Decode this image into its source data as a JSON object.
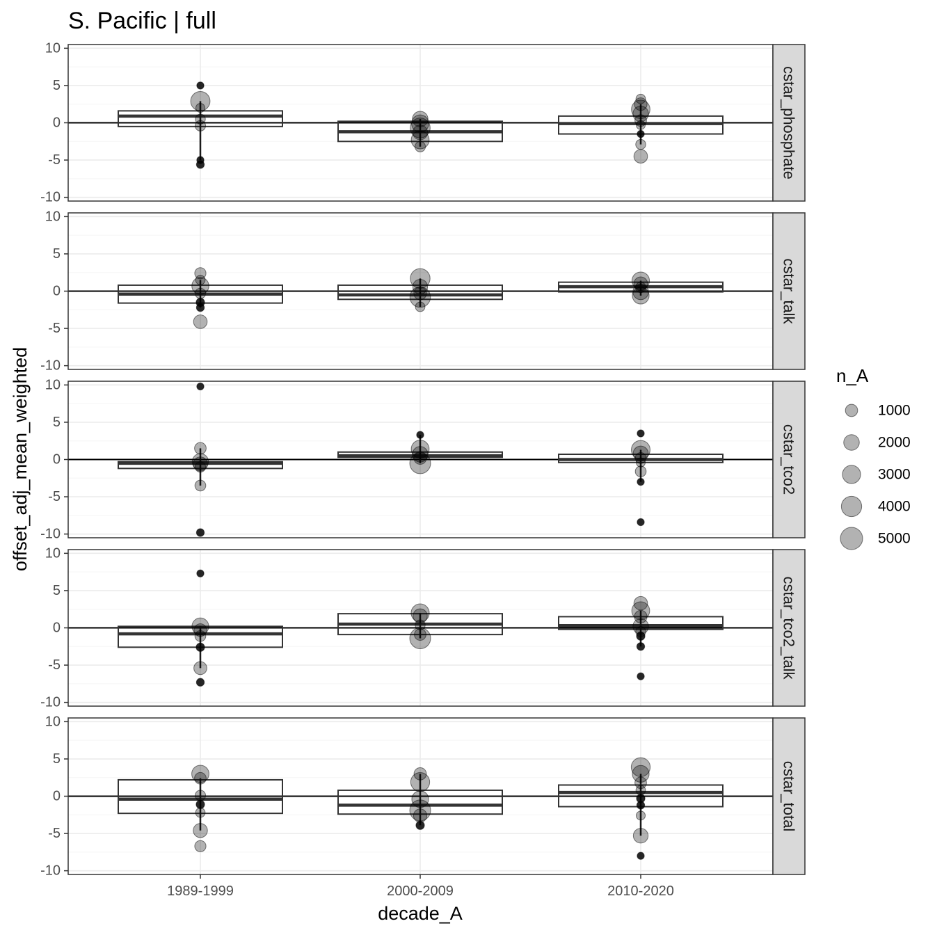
{
  "chart_data": {
    "type": "boxplot",
    "title": "S. Pacific | full",
    "xlabel": "decade_A",
    "ylabel": "offset_adj_mean_weighted",
    "categories": [
      "1989-1999",
      "2000-2009",
      "2010-2020"
    ],
    "ylim": [
      -10.5,
      10.5
    ],
    "yticks": [
      "10",
      "5",
      "0",
      "-5",
      "-10"
    ],
    "ytick_values": [
      10,
      5,
      0,
      -5,
      -10
    ],
    "reference_line_y": 0,
    "grid": true,
    "colors": {
      "panel_border": "#333333",
      "grid_major": "#ebebeb",
      "grid_minor": "#f5f5f5",
      "strip_fill": "#d9d9d9",
      "box_line": "#333333",
      "point_fill": "#000000"
    },
    "legend": {
      "title": "n_A",
      "position": "right",
      "entries": [
        {
          "label": "1000",
          "value": 1000
        },
        {
          "label": "2000",
          "value": 2000
        },
        {
          "label": "3000",
          "value": 3000
        },
        {
          "label": "4000",
          "value": 4000
        },
        {
          "label": "5000",
          "value": 5000
        }
      ]
    },
    "facets": [
      {
        "label": "cstar_phosphate",
        "boxes": [
          {
            "category": "1989-1999",
            "q1": -0.5,
            "median": 0.9,
            "q3": 1.6
          },
          {
            "category": "2000-2009",
            "q1": -2.5,
            "median": -1.2,
            "q3": 0.2
          },
          {
            "category": "2010-2020",
            "q1": -1.5,
            "median": -0.1,
            "q3": 0.9
          }
        ],
        "points": [
          {
            "category": "1989-1999",
            "y": 5.0,
            "n": 300
          },
          {
            "category": "1989-1999",
            "y": 2.9,
            "n": 4200
          },
          {
            "category": "1989-1999",
            "y": 2.0,
            "n": 600
          },
          {
            "category": "1989-1999",
            "y": 0.5,
            "n": 800
          },
          {
            "category": "1989-1999",
            "y": -0.4,
            "n": 900
          },
          {
            "category": "1989-1999",
            "y": -5.0,
            "n": 300
          },
          {
            "category": "1989-1999",
            "y": -5.6,
            "n": 400
          },
          {
            "category": "2000-2009",
            "y": 0.5,
            "n": 2500
          },
          {
            "category": "2000-2009",
            "y": -0.1,
            "n": 3200
          },
          {
            "category": "2000-2009",
            "y": -0.7,
            "n": 4500
          },
          {
            "category": "2000-2009",
            "y": -1.3,
            "n": 2200
          },
          {
            "category": "2000-2009",
            "y": -2.3,
            "n": 3500
          },
          {
            "category": "2000-2009",
            "y": -3.2,
            "n": 900
          },
          {
            "category": "2010-2020",
            "y": 3.2,
            "n": 700
          },
          {
            "category": "2010-2020",
            "y": 2.5,
            "n": 1500
          },
          {
            "category": "2010-2020",
            "y": 1.8,
            "n": 3800
          },
          {
            "category": "2010-2020",
            "y": 1.2,
            "n": 2500
          },
          {
            "category": "2010-2020",
            "y": 0.3,
            "n": 1200
          },
          {
            "category": "2010-2020",
            "y": -0.3,
            "n": 600
          },
          {
            "category": "2010-2020",
            "y": -1.5,
            "n": 300
          },
          {
            "category": "2010-2020",
            "y": -2.9,
            "n": 800
          },
          {
            "category": "2010-2020",
            "y": -4.5,
            "n": 1800
          }
        ]
      },
      {
        "label": "cstar_talk",
        "boxes": [
          {
            "category": "1989-1999",
            "q1": -1.6,
            "median": -0.4,
            "q3": 0.8
          },
          {
            "category": "2000-2009",
            "q1": -1.1,
            "median": -0.5,
            "q3": 0.8
          },
          {
            "category": "2010-2020",
            "q1": -0.1,
            "median": 0.6,
            "q3": 1.2
          }
        ],
        "points": [
          {
            "category": "1989-1999",
            "y": 2.4,
            "n": 1100
          },
          {
            "category": "1989-1999",
            "y": 1.5,
            "n": 700
          },
          {
            "category": "1989-1999",
            "y": 0.7,
            "n": 3100
          },
          {
            "category": "1989-1999",
            "y": -0.3,
            "n": 900
          },
          {
            "category": "1989-1999",
            "y": -1.5,
            "n": 500
          },
          {
            "category": "1989-1999",
            "y": -2.2,
            "n": 400
          },
          {
            "category": "1989-1999",
            "y": -4.1,
            "n": 1800
          },
          {
            "category": "2000-2009",
            "y": 1.7,
            "n": 4400
          },
          {
            "category": "2000-2009",
            "y": 0.6,
            "n": 2200
          },
          {
            "category": "2000-2009",
            "y": -0.3,
            "n": 1500
          },
          {
            "category": "2000-2009",
            "y": -0.8,
            "n": 4800
          },
          {
            "category": "2000-2009",
            "y": -2.1,
            "n": 700
          },
          {
            "category": "2010-2020",
            "y": 1.4,
            "n": 3300
          },
          {
            "category": "2010-2020",
            "y": 1.0,
            "n": 1800
          },
          {
            "category": "2010-2020",
            "y": 0.5,
            "n": 900
          },
          {
            "category": "2010-2020",
            "y": -0.1,
            "n": 2500
          },
          {
            "category": "2010-2020",
            "y": -0.6,
            "n": 3000
          }
        ]
      },
      {
        "label": "cstar_tco2",
        "boxes": [
          {
            "category": "1989-1999",
            "q1": -1.2,
            "median": -0.5,
            "q3": -0.3
          },
          {
            "category": "2000-2009",
            "q1": 0.3,
            "median": 0.5,
            "q3": 1.0
          },
          {
            "category": "2010-2020",
            "q1": -0.4,
            "median": 0.0,
            "q3": 0.7
          }
        ],
        "points": [
          {
            "category": "1989-1999",
            "y": 9.8,
            "n": 300
          },
          {
            "category": "1989-1999",
            "y": 1.5,
            "n": 1200
          },
          {
            "category": "1989-1999",
            "y": -0.3,
            "n": 2800
          },
          {
            "category": "1989-1999",
            "y": -0.6,
            "n": 2000
          },
          {
            "category": "1989-1999",
            "y": -1.0,
            "n": 900
          },
          {
            "category": "1989-1999",
            "y": -3.5,
            "n": 1000
          },
          {
            "category": "1989-1999",
            "y": -9.8,
            "n": 400
          },
          {
            "category": "2000-2009",
            "y": 3.3,
            "n": 300
          },
          {
            "category": "2000-2009",
            "y": 1.4,
            "n": 3500
          },
          {
            "category": "2000-2009",
            "y": 0.7,
            "n": 2500
          },
          {
            "category": "2000-2009",
            "y": 0.2,
            "n": 1500
          },
          {
            "category": "2000-2009",
            "y": -0.5,
            "n": 5000
          },
          {
            "category": "2010-2020",
            "y": 3.5,
            "n": 300
          },
          {
            "category": "2010-2020",
            "y": 1.3,
            "n": 3900
          },
          {
            "category": "2010-2020",
            "y": 0.8,
            "n": 2300
          },
          {
            "category": "2010-2020",
            "y": 0.2,
            "n": 1000
          },
          {
            "category": "2010-2020",
            "y": -0.4,
            "n": 600
          },
          {
            "category": "2010-2020",
            "y": -1.6,
            "n": 1000
          },
          {
            "category": "2010-2020",
            "y": -3.0,
            "n": 300
          },
          {
            "category": "2010-2020",
            "y": -8.4,
            "n": 300
          }
        ]
      },
      {
        "label": "cstar_tco2_talk",
        "boxes": [
          {
            "category": "1989-1999",
            "q1": -2.6,
            "median": -0.8,
            "q3": 0.2
          },
          {
            "category": "2000-2009",
            "q1": -0.9,
            "median": 0.5,
            "q3": 1.9
          },
          {
            "category": "2010-2020",
            "q1": -0.2,
            "median": 0.3,
            "q3": 1.5
          }
        ],
        "points": [
          {
            "category": "1989-1999",
            "y": 7.3,
            "n": 300
          },
          {
            "category": "1989-1999",
            "y": 0.2,
            "n": 3000
          },
          {
            "category": "1989-1999",
            "y": -0.3,
            "n": 1500
          },
          {
            "category": "1989-1999",
            "y": -1.1,
            "n": 1000
          },
          {
            "category": "1989-1999",
            "y": -2.6,
            "n": 500
          },
          {
            "category": "1989-1999",
            "y": -5.4,
            "n": 1600
          },
          {
            "category": "1989-1999",
            "y": -7.3,
            "n": 400
          },
          {
            "category": "2000-2009",
            "y": 2.0,
            "n": 3600
          },
          {
            "category": "2000-2009",
            "y": 1.6,
            "n": 2000
          },
          {
            "category": "2000-2009",
            "y": 0.4,
            "n": 800
          },
          {
            "category": "2000-2009",
            "y": -0.9,
            "n": 1200
          },
          {
            "category": "2000-2009",
            "y": -1.4,
            "n": 5000
          },
          {
            "category": "2010-2020",
            "y": 3.3,
            "n": 1800
          },
          {
            "category": "2010-2020",
            "y": 2.3,
            "n": 3500
          },
          {
            "category": "2010-2020",
            "y": 1.5,
            "n": 1500
          },
          {
            "category": "2010-2020",
            "y": 0.2,
            "n": 2500
          },
          {
            "category": "2010-2020",
            "y": -0.5,
            "n": 800
          },
          {
            "category": "2010-2020",
            "y": -1.1,
            "n": 500
          },
          {
            "category": "2010-2020",
            "y": -2.5,
            "n": 400
          },
          {
            "category": "2010-2020",
            "y": -6.5,
            "n": 300
          }
        ]
      },
      {
        "label": "cstar_total",
        "boxes": [
          {
            "category": "1989-1999",
            "q1": -2.3,
            "median": -0.4,
            "q3": 2.2
          },
          {
            "category": "2000-2009",
            "q1": -2.4,
            "median": -1.2,
            "q3": 0.8
          },
          {
            "category": "2010-2020",
            "q1": -1.4,
            "median": 0.5,
            "q3": 1.5
          }
        ],
        "points": [
          {
            "category": "1989-1999",
            "y": 3.0,
            "n": 3200
          },
          {
            "category": "1989-1999",
            "y": 2.4,
            "n": 1200
          },
          {
            "category": "1989-1999",
            "y": 0.1,
            "n": 900
          },
          {
            "category": "1989-1999",
            "y": -1.1,
            "n": 500
          },
          {
            "category": "1989-1999",
            "y": -2.2,
            "n": 700
          },
          {
            "category": "1989-1999",
            "y": -4.6,
            "n": 2000
          },
          {
            "category": "1989-1999",
            "y": -6.7,
            "n": 1100
          },
          {
            "category": "2000-2009",
            "y": 3.0,
            "n": 1400
          },
          {
            "category": "2000-2009",
            "y": 1.9,
            "n": 4000
          },
          {
            "category": "2000-2009",
            "y": -0.4,
            "n": 3000
          },
          {
            "category": "2000-2009",
            "y": -1.9,
            "n": 5000
          },
          {
            "category": "2000-2009",
            "y": -2.6,
            "n": 1700
          },
          {
            "category": "2000-2009",
            "y": -3.9,
            "n": 500
          },
          {
            "category": "2010-2020",
            "y": 3.9,
            "n": 4000
          },
          {
            "category": "2010-2020",
            "y": 3.0,
            "n": 3000
          },
          {
            "category": "2010-2020",
            "y": 1.8,
            "n": 1200
          },
          {
            "category": "2010-2020",
            "y": 0.8,
            "n": 700
          },
          {
            "category": "2010-2020",
            "y": -0.3,
            "n": 500
          },
          {
            "category": "2010-2020",
            "y": -1.2,
            "n": 400
          },
          {
            "category": "2010-2020",
            "y": -2.6,
            "n": 600
          },
          {
            "category": "2010-2020",
            "y": -5.3,
            "n": 2200
          },
          {
            "category": "2010-2020",
            "y": -8.0,
            "n": 300
          }
        ]
      }
    ]
  }
}
